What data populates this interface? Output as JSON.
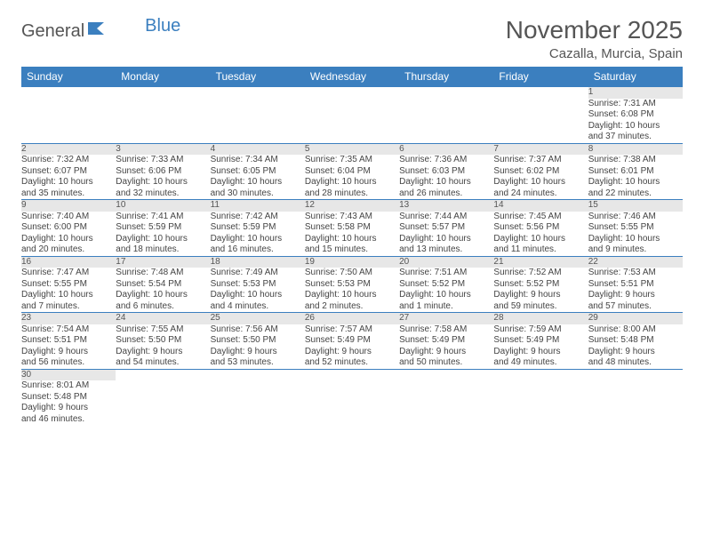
{
  "brand": {
    "part1": "General",
    "part2": "Blue"
  },
  "title": "November 2025",
  "location": "Cazalla, Murcia, Spain",
  "colors": {
    "header_bg": "#3b7fbf",
    "header_text": "#ffffff",
    "daynum_bg": "#e7e7e7",
    "rule": "#3b7fbf",
    "text": "#444444",
    "title_text": "#555555"
  },
  "weekdays": [
    "Sunday",
    "Monday",
    "Tuesday",
    "Wednesday",
    "Thursday",
    "Friday",
    "Saturday"
  ],
  "weeks": [
    [
      null,
      null,
      null,
      null,
      null,
      null,
      {
        "n": "1",
        "sunrise": "Sunrise: 7:31 AM",
        "sunset": "Sunset: 6:08 PM",
        "day1": "Daylight: 10 hours",
        "day2": "and 37 minutes."
      }
    ],
    [
      {
        "n": "2",
        "sunrise": "Sunrise: 7:32 AM",
        "sunset": "Sunset: 6:07 PM",
        "day1": "Daylight: 10 hours",
        "day2": "and 35 minutes."
      },
      {
        "n": "3",
        "sunrise": "Sunrise: 7:33 AM",
        "sunset": "Sunset: 6:06 PM",
        "day1": "Daylight: 10 hours",
        "day2": "and 32 minutes."
      },
      {
        "n": "4",
        "sunrise": "Sunrise: 7:34 AM",
        "sunset": "Sunset: 6:05 PM",
        "day1": "Daylight: 10 hours",
        "day2": "and 30 minutes."
      },
      {
        "n": "5",
        "sunrise": "Sunrise: 7:35 AM",
        "sunset": "Sunset: 6:04 PM",
        "day1": "Daylight: 10 hours",
        "day2": "and 28 minutes."
      },
      {
        "n": "6",
        "sunrise": "Sunrise: 7:36 AM",
        "sunset": "Sunset: 6:03 PM",
        "day1": "Daylight: 10 hours",
        "day2": "and 26 minutes."
      },
      {
        "n": "7",
        "sunrise": "Sunrise: 7:37 AM",
        "sunset": "Sunset: 6:02 PM",
        "day1": "Daylight: 10 hours",
        "day2": "and 24 minutes."
      },
      {
        "n": "8",
        "sunrise": "Sunrise: 7:38 AM",
        "sunset": "Sunset: 6:01 PM",
        "day1": "Daylight: 10 hours",
        "day2": "and 22 minutes."
      }
    ],
    [
      {
        "n": "9",
        "sunrise": "Sunrise: 7:40 AM",
        "sunset": "Sunset: 6:00 PM",
        "day1": "Daylight: 10 hours",
        "day2": "and 20 minutes."
      },
      {
        "n": "10",
        "sunrise": "Sunrise: 7:41 AM",
        "sunset": "Sunset: 5:59 PM",
        "day1": "Daylight: 10 hours",
        "day2": "and 18 minutes."
      },
      {
        "n": "11",
        "sunrise": "Sunrise: 7:42 AM",
        "sunset": "Sunset: 5:59 PM",
        "day1": "Daylight: 10 hours",
        "day2": "and 16 minutes."
      },
      {
        "n": "12",
        "sunrise": "Sunrise: 7:43 AM",
        "sunset": "Sunset: 5:58 PM",
        "day1": "Daylight: 10 hours",
        "day2": "and 15 minutes."
      },
      {
        "n": "13",
        "sunrise": "Sunrise: 7:44 AM",
        "sunset": "Sunset: 5:57 PM",
        "day1": "Daylight: 10 hours",
        "day2": "and 13 minutes."
      },
      {
        "n": "14",
        "sunrise": "Sunrise: 7:45 AM",
        "sunset": "Sunset: 5:56 PM",
        "day1": "Daylight: 10 hours",
        "day2": "and 11 minutes."
      },
      {
        "n": "15",
        "sunrise": "Sunrise: 7:46 AM",
        "sunset": "Sunset: 5:55 PM",
        "day1": "Daylight: 10 hours",
        "day2": "and 9 minutes."
      }
    ],
    [
      {
        "n": "16",
        "sunrise": "Sunrise: 7:47 AM",
        "sunset": "Sunset: 5:55 PM",
        "day1": "Daylight: 10 hours",
        "day2": "and 7 minutes."
      },
      {
        "n": "17",
        "sunrise": "Sunrise: 7:48 AM",
        "sunset": "Sunset: 5:54 PM",
        "day1": "Daylight: 10 hours",
        "day2": "and 6 minutes."
      },
      {
        "n": "18",
        "sunrise": "Sunrise: 7:49 AM",
        "sunset": "Sunset: 5:53 PM",
        "day1": "Daylight: 10 hours",
        "day2": "and 4 minutes."
      },
      {
        "n": "19",
        "sunrise": "Sunrise: 7:50 AM",
        "sunset": "Sunset: 5:53 PM",
        "day1": "Daylight: 10 hours",
        "day2": "and 2 minutes."
      },
      {
        "n": "20",
        "sunrise": "Sunrise: 7:51 AM",
        "sunset": "Sunset: 5:52 PM",
        "day1": "Daylight: 10 hours",
        "day2": "and 1 minute."
      },
      {
        "n": "21",
        "sunrise": "Sunrise: 7:52 AM",
        "sunset": "Sunset: 5:52 PM",
        "day1": "Daylight: 9 hours",
        "day2": "and 59 minutes."
      },
      {
        "n": "22",
        "sunrise": "Sunrise: 7:53 AM",
        "sunset": "Sunset: 5:51 PM",
        "day1": "Daylight: 9 hours",
        "day2": "and 57 minutes."
      }
    ],
    [
      {
        "n": "23",
        "sunrise": "Sunrise: 7:54 AM",
        "sunset": "Sunset: 5:51 PM",
        "day1": "Daylight: 9 hours",
        "day2": "and 56 minutes."
      },
      {
        "n": "24",
        "sunrise": "Sunrise: 7:55 AM",
        "sunset": "Sunset: 5:50 PM",
        "day1": "Daylight: 9 hours",
        "day2": "and 54 minutes."
      },
      {
        "n": "25",
        "sunrise": "Sunrise: 7:56 AM",
        "sunset": "Sunset: 5:50 PM",
        "day1": "Daylight: 9 hours",
        "day2": "and 53 minutes."
      },
      {
        "n": "26",
        "sunrise": "Sunrise: 7:57 AM",
        "sunset": "Sunset: 5:49 PM",
        "day1": "Daylight: 9 hours",
        "day2": "and 52 minutes."
      },
      {
        "n": "27",
        "sunrise": "Sunrise: 7:58 AM",
        "sunset": "Sunset: 5:49 PM",
        "day1": "Daylight: 9 hours",
        "day2": "and 50 minutes."
      },
      {
        "n": "28",
        "sunrise": "Sunrise: 7:59 AM",
        "sunset": "Sunset: 5:49 PM",
        "day1": "Daylight: 9 hours",
        "day2": "and 49 minutes."
      },
      {
        "n": "29",
        "sunrise": "Sunrise: 8:00 AM",
        "sunset": "Sunset: 5:48 PM",
        "day1": "Daylight: 9 hours",
        "day2": "and 48 minutes."
      }
    ],
    [
      {
        "n": "30",
        "sunrise": "Sunrise: 8:01 AM",
        "sunset": "Sunset: 5:48 PM",
        "day1": "Daylight: 9 hours",
        "day2": "and 46 minutes."
      },
      null,
      null,
      null,
      null,
      null,
      null
    ]
  ]
}
